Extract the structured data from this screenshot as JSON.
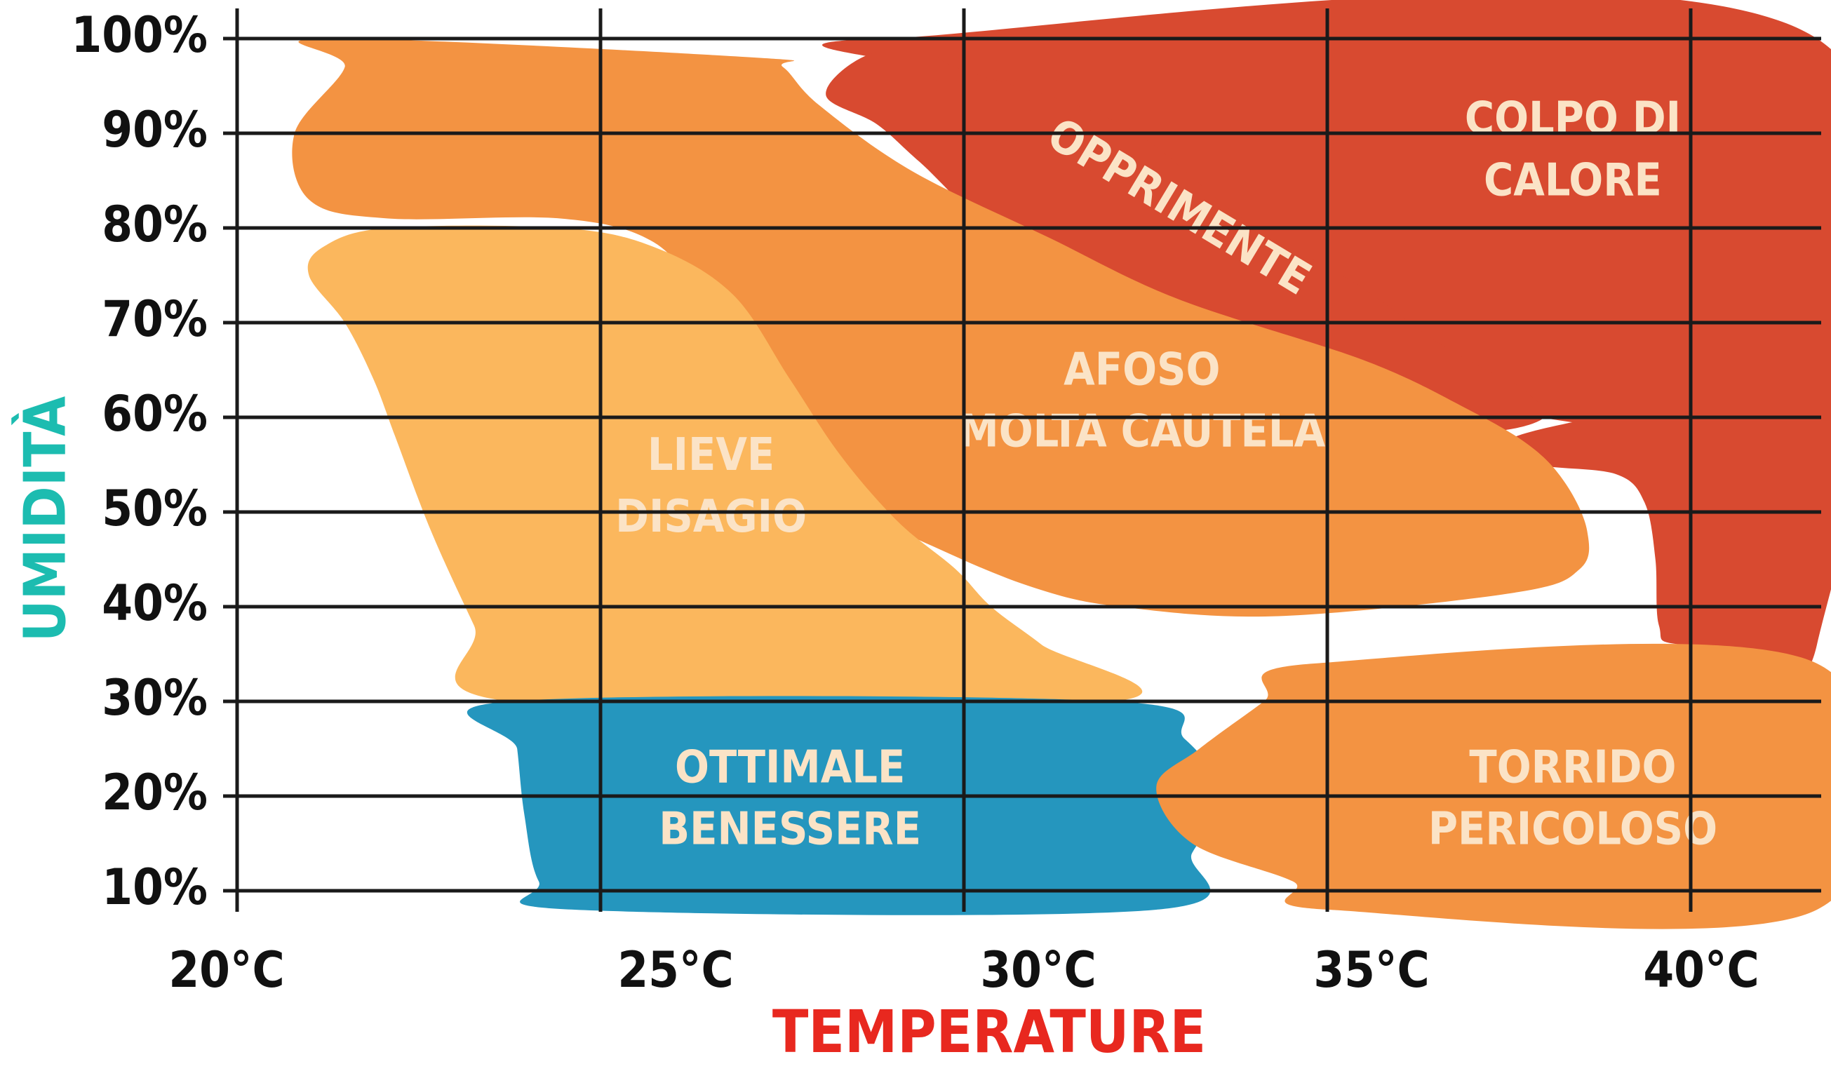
{
  "colors": {
    "comfort": "#2596be",
    "mild": "#fbb75d",
    "hot": "#f39342",
    "danger": "#d84a30",
    "ylabel": "#1cbcb0",
    "xlabel": "#e8281f",
    "grid": "#1a1a1a"
  },
  "chart_data": {
    "type": "heatmap",
    "title": "",
    "xlabel": "TEMPERATURE",
    "ylabel": "UMIDITÀ",
    "x_ticks": [
      "20°C",
      "25°C",
      "30°C",
      "35°C",
      "40°C"
    ],
    "y_ticks": [
      "10%",
      "20%",
      "30%",
      "40%",
      "50%",
      "60%",
      "70%",
      "80%",
      "90%",
      "100%"
    ],
    "xlim": [
      20,
      42
    ],
    "ylim": [
      8,
      100
    ],
    "grid": true,
    "zones": [
      {
        "key": "colpo",
        "label_lines": [
          "COLPO DI",
          "CALORE"
        ],
        "color": "danger",
        "polygon": [
          [
            29.0,
            100
          ],
          [
            42,
            100
          ],
          [
            42,
            36
          ],
          [
            40.1,
            36
          ],
          [
            39.8,
            38
          ],
          [
            39.75,
            45
          ],
          [
            39.6,
            51
          ],
          [
            39.2,
            54
          ],
          [
            38.1,
            55
          ],
          [
            37.6,
            57
          ],
          [
            38.3,
            59
          ],
          [
            40.0,
            61
          ],
          [
            42,
            60
          ],
          [
            40.3,
            58
          ],
          [
            36.7,
            62
          ],
          [
            34.7,
            67
          ],
          [
            32.4,
            77
          ],
          [
            30.5,
            88
          ],
          [
            29.4,
            94
          ],
          [
            29.4,
            97
          ]
        ],
        "label_center": [
          38.6,
          88
        ]
      },
      {
        "key": "opprimente",
        "label_lines": [
          "OPPRIMENTE"
        ],
        "color": "danger",
        "polygon": [
          [
            28.7,
            98
          ],
          [
            29.6,
            99.2
          ],
          [
            30.0,
            97
          ],
          [
            32.3,
            91
          ],
          [
            34.0,
            81
          ],
          [
            35.6,
            74
          ],
          [
            36.7,
            68
          ],
          [
            37.4,
            65
          ],
          [
            37.9,
            63
          ],
          [
            38.2,
            60
          ],
          [
            37.4,
            58.5
          ],
          [
            36.5,
            60
          ],
          [
            34.9,
            64
          ],
          [
            33.0,
            70
          ],
          [
            30.7,
            79
          ],
          [
            29.5,
            87
          ],
          [
            28.9,
            91
          ],
          [
            28.2,
            94
          ]
        ],
        "label_center": [
          33.1,
          82
        ],
        "label_rotation": 31
      },
      {
        "key": "afoso",
        "label_lines": [
          "AFOSO",
          "MOLTA CAUTELA"
        ],
        "color": "hot",
        "polygon": [
          [
            21.2,
            100
          ],
          [
            27.2,
            98
          ],
          [
            27.6,
            97
          ],
          [
            28.1,
            93
          ],
          [
            29.4,
            86
          ],
          [
            31.3,
            79
          ],
          [
            33.1,
            72.5
          ],
          [
            35.7,
            66
          ],
          [
            37.1,
            61
          ],
          [
            38.0,
            57
          ],
          [
            38.5,
            53
          ],
          [
            38.8,
            48
          ],
          [
            38.7,
            44
          ],
          [
            37.8,
            41.5
          ],
          [
            34.5,
            39
          ],
          [
            32.3,
            40
          ],
          [
            31.1,
            42
          ],
          [
            29.8,
            46
          ],
          [
            28.5,
            51
          ],
          [
            27.8,
            57
          ],
          [
            27.2,
            63
          ],
          [
            26.5,
            72
          ],
          [
            25.8,
            78.5
          ],
          [
            24.5,
            81
          ],
          [
            22.1,
            81
          ],
          [
            21.0,
            83
          ],
          [
            20.8,
            90
          ],
          [
            21.5,
            97
          ]
        ],
        "label_center": [
          32.6,
          61.5
        ]
      },
      {
        "key": "lieve",
        "label_lines": [
          "LIEVE",
          "DISAGIO"
        ],
        "color": "mild",
        "polygon": [
          [
            22.1,
            80
          ],
          [
            24.5,
            80
          ],
          [
            25.8,
            78
          ],
          [
            26.9,
            73
          ],
          [
            27.7,
            64
          ],
          [
            28.4,
            56
          ],
          [
            29.2,
            49
          ],
          [
            30.0,
            44
          ],
          [
            30.5,
            40
          ],
          [
            31.2,
            36
          ],
          [
            32.2,
            30
          ],
          [
            23.8,
            30
          ],
          [
            23.3,
            38
          ],
          [
            22.7,
            48
          ],
          [
            22.2,
            58
          ],
          [
            21.9,
            64
          ],
          [
            21.5,
            70
          ],
          [
            21.0,
            75
          ],
          [
            21.2,
            78
          ]
        ],
        "label_center": [
          26.6,
          52.5
        ]
      },
      {
        "key": "ottimale",
        "label_lines": [
          "OTTIMALE",
          "BENESSERE"
        ],
        "color": "comfort",
        "polygon": [
          [
            23.8,
            30
          ],
          [
            32.2,
            30
          ],
          [
            33.2,
            26
          ],
          [
            33.7,
            20
          ],
          [
            33.3,
            14
          ],
          [
            32.8,
            8
          ],
          [
            24.7,
            8
          ],
          [
            24.2,
            11
          ],
          [
            24.0,
            18
          ],
          [
            23.9,
            25
          ]
        ],
        "label_center": [
          27.7,
          19.5
        ]
      },
      {
        "key": "torrido",
        "label_lines": [
          "TORRIDO",
          "PERICOLOSO"
        ],
        "color": "hot",
        "polygon": [
          [
            35.0,
            34
          ],
          [
            42,
            34
          ],
          [
            42,
            8
          ],
          [
            35.2,
            8
          ],
          [
            34.7,
            11
          ],
          [
            33.3,
            15
          ],
          [
            32.8,
            21
          ],
          [
            33.4,
            25
          ],
          [
            34.3,
            30
          ]
        ],
        "label_center": [
          38.6,
          19.5
        ]
      }
    ]
  }
}
